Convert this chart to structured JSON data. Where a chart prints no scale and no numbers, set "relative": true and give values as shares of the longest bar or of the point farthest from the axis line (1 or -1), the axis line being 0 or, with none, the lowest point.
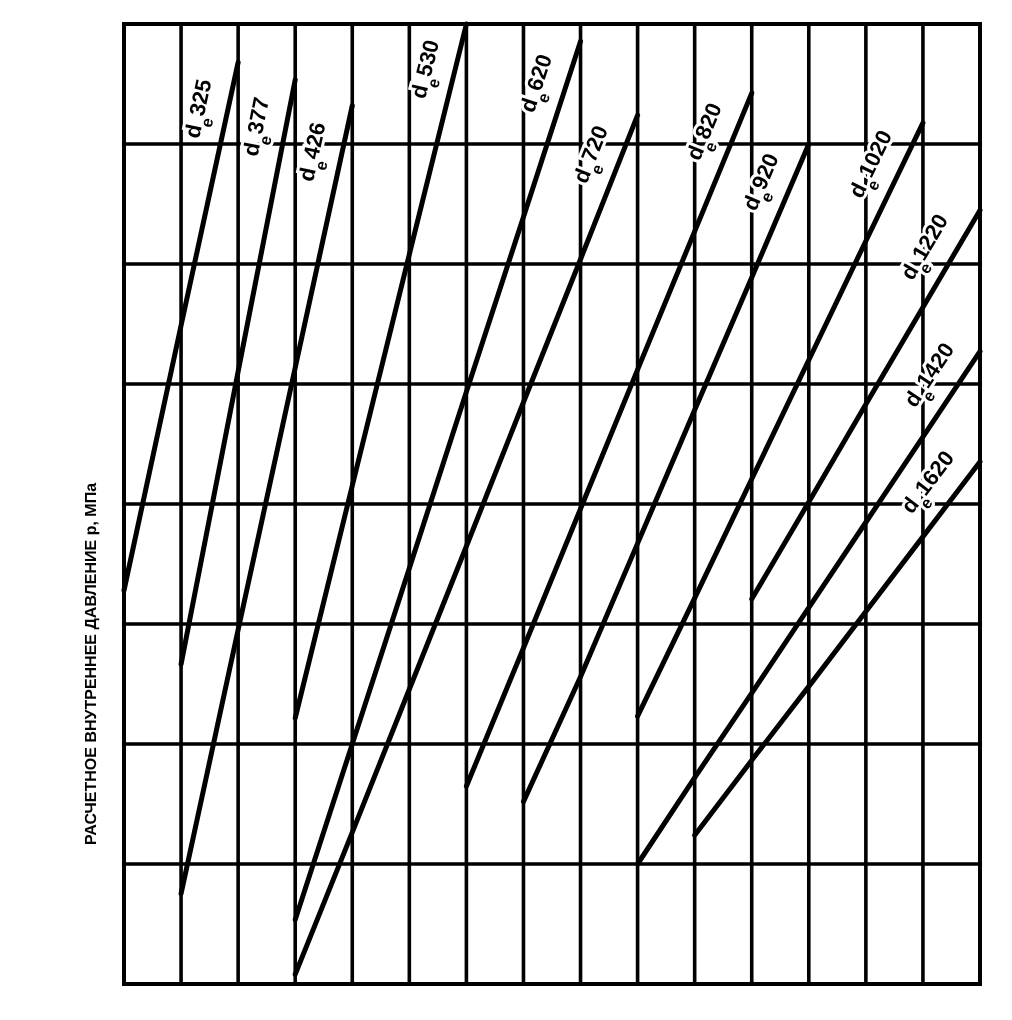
{
  "chart_data": {
    "type": "line",
    "relative": true,
    "ylabel": "РАСЧЕТНОЕ ВНУТРЕННЕЕ ДАВЛЕНИЕ р, МПа",
    "categories": [
      null,
      null,
      null,
      null,
      null,
      null,
      null,
      null,
      null,
      null,
      null,
      null,
      null,
      null,
      null,
      null
    ],
    "grid": true,
    "legend": false,
    "marker": "none",
    "line_style": "solid",
    "series": [
      {
        "name": "d$_{e}$325",
        "color": "#000000",
        "values": [
          0.41,
          0.686,
          0.96,
          null,
          null,
          null,
          null,
          null,
          null,
          null,
          null,
          null,
          null,
          null,
          null,
          null
        ]
      },
      {
        "name": "d$_{e}$377",
        "color": "#000000",
        "values": [
          null,
          0.333,
          0.638,
          0.942,
          null,
          null,
          null,
          null,
          null,
          null,
          null,
          null,
          null,
          null,
          null,
          null
        ]
      },
      {
        "name": "d$_{e}$426",
        "color": "#000000",
        "values": [
          null,
          0.094,
          0.369,
          0.642,
          0.915,
          null,
          null,
          null,
          null,
          null,
          null,
          null,
          null,
          null,
          null,
          null
        ]
      },
      {
        "name": "d$_{e}$530",
        "color": "#000000",
        "values": [
          null,
          null,
          null,
          0.277,
          0.519,
          0.76,
          1,
          null,
          null,
          null,
          null,
          null,
          null,
          null,
          null,
          null
        ]
      },
      {
        "name": "d$_{e}$620",
        "color": "#000000",
        "values": [
          null,
          null,
          null,
          0.067,
          0.25,
          0.433,
          0.617,
          0.799,
          0.982,
          null,
          null,
          null,
          null,
          null,
          null,
          null
        ]
      },
      {
        "name": "d$_{e}$720",
        "color": "#000000",
        "values": [
          null,
          null,
          null,
          0.01,
          0.158,
          0.307,
          0.456,
          0.606,
          0.755,
          0.905,
          null,
          null,
          null,
          null,
          null,
          null
        ]
      },
      {
        "name": "d$_{e}$820",
        "color": "#000000",
        "values": [
          null,
          null,
          null,
          null,
          null,
          null,
          0.206,
          0.35,
          0.495,
          0.64,
          0.784,
          0.928,
          null,
          null,
          null,
          null
        ]
      },
      {
        "name": "d$_{e}$920",
        "color": "#000000",
        "values": [
          null,
          null,
          null,
          null,
          null,
          null,
          null,
          0.19,
          0.32,
          0.459,
          0.598,
          0.736,
          0.875,
          null,
          null,
          null
        ]
      },
      {
        "name": "d$_{e}$1020",
        "color": "#000000",
        "values": [
          null,
          null,
          null,
          null,
          null,
          null,
          null,
          null,
          null,
          0.279,
          0.402,
          0.526,
          0.65,
          0.774,
          0.897,
          null
        ]
      },
      {
        "name": "d$_{e}$1220",
        "color": "#000000",
        "values": [
          null,
          null,
          null,
          null,
          null,
          null,
          null,
          null,
          null,
          null,
          null,
          0.401,
          0.502,
          0.604,
          0.705,
          0.806
        ]
      },
      {
        "name": "d$_{e}$1420",
        "color": "#000000",
        "values": [
          null,
          null,
          null,
          null,
          null,
          null,
          null,
          null,
          null,
          0.125,
          0.215,
          0.303,
          0.392,
          0.481,
          0.57,
          0.659
        ]
      },
      {
        "name": "d$_{e}$1620",
        "color": "#000000",
        "values": [
          null,
          null,
          null,
          null,
          null,
          null,
          null,
          null,
          null,
          null,
          0.155,
          0.233,
          0.31,
          0.388,
          0.466,
          0.544
        ]
      }
    ]
  }
}
